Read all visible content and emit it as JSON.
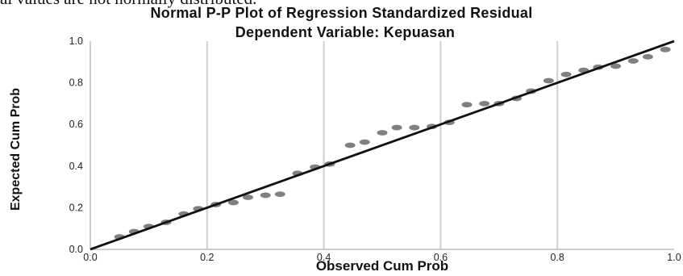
{
  "page": {
    "top_cut_text": "al values are not normally distributed."
  },
  "chart_data": {
    "type": "scatter",
    "title": "Normal P-P Plot of Regression Standardized Residual",
    "subtitle": "Dependent Variable: Kepuasan",
    "xlabel": "Observed Cum Prob",
    "ylabel": "Expected Cum Prob",
    "xlim": [
      0.0,
      1.0
    ],
    "ylim": [
      0.0,
      1.0
    ],
    "x_ticks": [
      "0.0",
      "0.2",
      "0.4",
      "0.6",
      "0.8",
      "1.0"
    ],
    "y_ticks": [
      "0.0",
      "0.2",
      "0.4",
      "0.6",
      "0.8",
      "1.0"
    ],
    "grid": "vertical",
    "reference_line": [
      [
        0.0,
        0.0
      ],
      [
        1.0,
        1.0
      ]
    ],
    "points": {
      "x": [
        0.05,
        0.075,
        0.1,
        0.13,
        0.16,
        0.185,
        0.215,
        0.245,
        0.27,
        0.3,
        0.325,
        0.355,
        0.385,
        0.41,
        0.445,
        0.47,
        0.5,
        0.525,
        0.555,
        0.585,
        0.615,
        0.645,
        0.675,
        0.7,
        0.73,
        0.755,
        0.785,
        0.815,
        0.845,
        0.87,
        0.9,
        0.93,
        0.955,
        0.985
      ],
      "y": [
        0.06,
        0.085,
        0.11,
        0.13,
        0.17,
        0.195,
        0.215,
        0.225,
        0.25,
        0.26,
        0.265,
        0.365,
        0.395,
        0.41,
        0.5,
        0.515,
        0.56,
        0.585,
        0.585,
        0.59,
        0.61,
        0.695,
        0.7,
        0.7,
        0.725,
        0.76,
        0.81,
        0.84,
        0.86,
        0.875,
        0.88,
        0.905,
        0.925,
        0.96
      ]
    },
    "colors": {
      "points": "#808080",
      "reference_line": "#111111",
      "grid": "#cfcfcf"
    }
  }
}
